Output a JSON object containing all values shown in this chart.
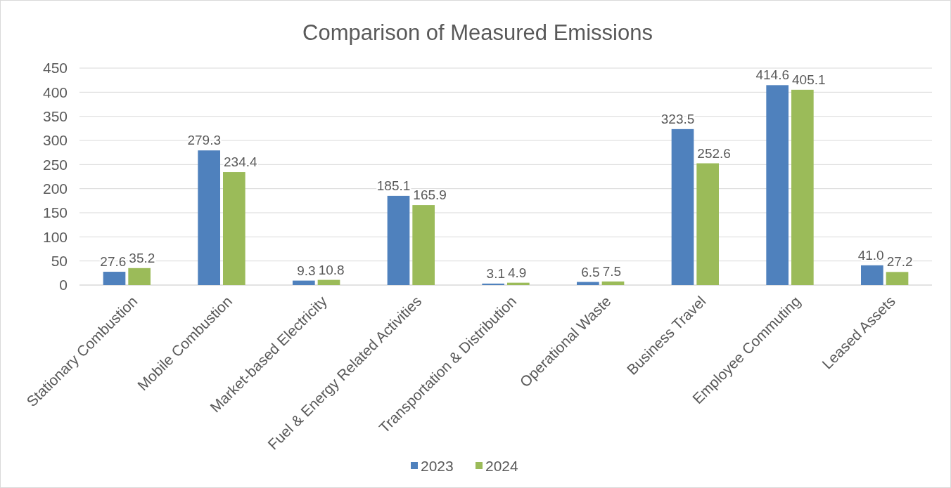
{
  "chart_data": {
    "type": "bar",
    "title": "Comparison of Measured Emissions",
    "categories": [
      "Stationary Combustion",
      "Mobile Combustion",
      "Market-based Electricity",
      "Fuel & Energy Related Activities",
      "Transportation & Distribution",
      "Operational Waste",
      "Business Travel",
      "Employee Commuting",
      "Leased Assets"
    ],
    "series": [
      {
        "name": "2023",
        "color": "#4f81bd",
        "values": [
          27.6,
          279.3,
          9.3,
          185.1,
          3.1,
          6.5,
          323.5,
          414.6,
          41.0
        ],
        "value_labels": [
          "27.6",
          "279.3",
          "9.3",
          "185.1",
          "3.1",
          "6.5",
          "323.5",
          "414.6",
          "41.0"
        ]
      },
      {
        "name": "2024",
        "color": "#9bbb59",
        "values": [
          35.2,
          234.4,
          10.8,
          165.9,
          4.9,
          7.5,
          252.6,
          405.1,
          27.2
        ],
        "value_labels": [
          "35.2",
          "234.4",
          "10.8",
          "165.9",
          "4.9",
          "7.5",
          "252.6",
          "405.1",
          "27.2"
        ]
      }
    ],
    "ylim": [
      0,
      450
    ],
    "yticks": [
      0,
      50,
      100,
      150,
      200,
      250,
      300,
      350,
      400,
      450
    ],
    "grid": "y",
    "legend": "bottom"
  }
}
